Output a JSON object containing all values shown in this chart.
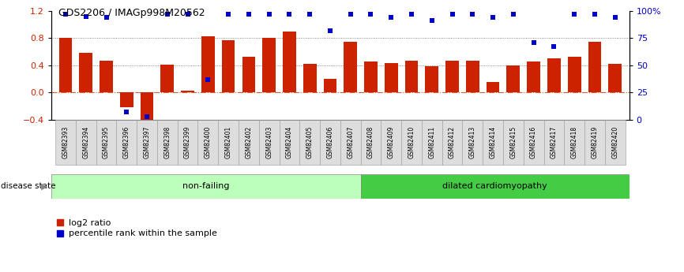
{
  "title": "GDS2206 / IMAGp998M20562",
  "samples": [
    "GSM82393",
    "GSM82394",
    "GSM82395",
    "GSM82396",
    "GSM82397",
    "GSM82398",
    "GSM82399",
    "GSM82400",
    "GSM82401",
    "GSM82402",
    "GSM82403",
    "GSM82404",
    "GSM82405",
    "GSM82406",
    "GSM82407",
    "GSM82408",
    "GSM82409",
    "GSM82410",
    "GSM82411",
    "GSM82412",
    "GSM82413",
    "GSM82414",
    "GSM82415",
    "GSM82416",
    "GSM82417",
    "GSM82418",
    "GSM82419",
    "GSM82420"
  ],
  "log2_ratio": [
    0.8,
    0.58,
    0.47,
    -0.22,
    -0.48,
    0.41,
    0.03,
    0.83,
    0.77,
    0.53,
    0.8,
    0.9,
    0.42,
    0.2,
    0.75,
    0.45,
    0.43,
    0.47,
    0.39,
    0.47,
    0.47,
    0.15,
    0.4,
    0.45,
    0.5,
    0.53,
    0.75,
    0.42
  ],
  "percentile_pct": [
    97,
    95,
    94,
    7,
    3,
    97,
    97,
    37,
    97,
    97,
    97,
    97,
    97,
    82,
    97,
    97,
    94,
    97,
    91,
    97,
    97,
    94,
    97,
    71,
    67,
    97,
    97,
    94
  ],
  "non_failing_count": 15,
  "bar_color": "#cc2200",
  "dot_color": "#0000cc",
  "non_failing_color": "#bbffbb",
  "cardiomyopathy_color": "#44cc44",
  "non_failing_label": "non-failing",
  "cardiomyopathy_label": "dilated cardiomyopathy",
  "ylim_min": -0.4,
  "ylim_max": 1.2,
  "yticks_left": [
    -0.4,
    0.0,
    0.4,
    0.8,
    1.2
  ],
  "yticks_right": [
    0,
    25,
    50,
    75,
    100
  ]
}
